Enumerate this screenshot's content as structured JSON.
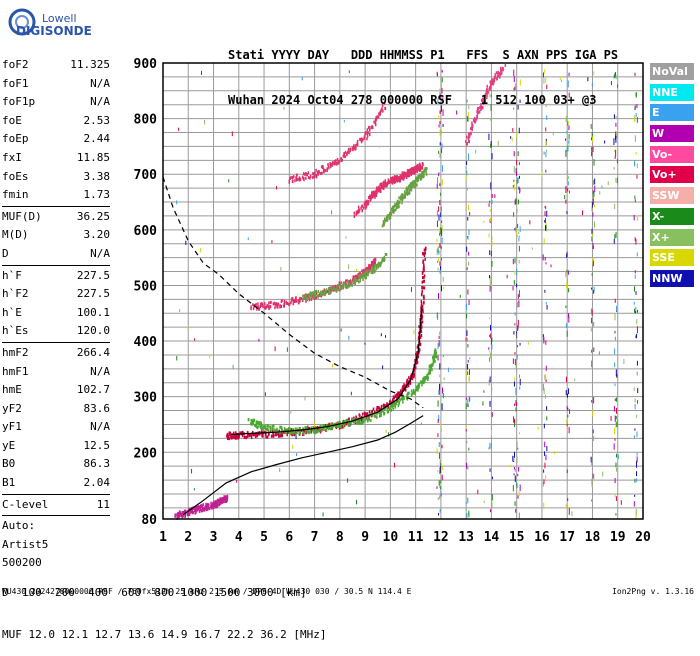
{
  "logo": {
    "line1": "Lowell",
    "line2": "DIGISONDE"
  },
  "header": {
    "labels": "Stati YYYY DAY   DDD HHMMSS P1   FFS  S AXN PPS IGA PS",
    "values": "Wuhan 2024 Oct04 278 000000 RSF    1 512 100 03+ @3"
  },
  "params": [
    {
      "name": "foF2",
      "value": "11.325"
    },
    {
      "name": "foF1",
      "value": "N/A"
    },
    {
      "name": "foF1p",
      "value": "N/A"
    },
    {
      "name": "foE",
      "value": "2.53"
    },
    {
      "name": "foEp",
      "value": "2.44"
    },
    {
      "name": "fxI",
      "value": "11.85"
    },
    {
      "name": "foEs",
      "value": "3.38"
    },
    {
      "name": "fmin",
      "value": "1.73"
    },
    {
      "divider": true
    },
    {
      "name": "MUF(D)",
      "value": "36.25"
    },
    {
      "name": "M(D)",
      "value": "3.20"
    },
    {
      "name": "D",
      "value": "N/A"
    },
    {
      "divider": true
    },
    {
      "name": "h`F",
      "value": "227.5"
    },
    {
      "name": "h`F2",
      "value": "227.5"
    },
    {
      "name": "h`E",
      "value": "100.1"
    },
    {
      "name": "h`Es",
      "value": "120.0"
    },
    {
      "divider": true
    },
    {
      "name": "hmF2",
      "value": "266.4"
    },
    {
      "name": "hmF1",
      "value": "N/A"
    },
    {
      "name": "hmE",
      "value": "102.7"
    },
    {
      "name": "yF2",
      "value": "83.6"
    },
    {
      "name": "yF1",
      "value": "N/A"
    },
    {
      "name": "yE",
      "value": "12.5"
    },
    {
      "name": "B0",
      "value": "86.3"
    },
    {
      "name": "B1",
      "value": "2.04"
    },
    {
      "divider": true
    },
    {
      "name": "C-level",
      "value": "11"
    },
    {
      "divider": true
    },
    {
      "name": "Auto:",
      "value": ""
    },
    {
      "name": "Artist5",
      "value": ""
    },
    {
      "name": "500200",
      "value": ""
    }
  ],
  "legend": [
    {
      "label": "NoVal",
      "color": "#a0a0a0"
    },
    {
      "label": "NNE",
      "color": "#00e8f0"
    },
    {
      "label": "E",
      "color": "#3aa0f0"
    },
    {
      "label": "W",
      "color": "#b000b0"
    },
    {
      "label": "Vo-",
      "color": "#ff4aa0"
    },
    {
      "label": "Vo+",
      "color": "#e0004a"
    },
    {
      "label": "SSW",
      "color": "#f4b0a8"
    },
    {
      "label": "X-",
      "color": "#1a8a1a"
    },
    {
      "label": "X+",
      "color": "#88c060"
    },
    {
      "label": "SSE",
      "color": "#d8d800"
    },
    {
      "label": "NNW",
      "color": "#1010b0"
    }
  ],
  "muf_table": {
    "d_label": "D",
    "distances": [
      "100",
      "200",
      "400",
      "600",
      "800",
      "1000",
      "1500",
      "3000"
    ],
    "d_unit": "[km]",
    "muf_label": "MUF",
    "mufs": [
      "12.0",
      "12.1",
      "12.7",
      "13.6",
      "14.9",
      "16.7",
      "22.2",
      "36.2"
    ],
    "muf_unit": "[MHz]"
  },
  "footer": {
    "info": "WU430_2024278000000.RSF / 760fx512h 25 kHz 2.5 km / DPS-4D WU430 030 / 30.5 N 114.4 E",
    "version": "Ion2Png v. 1.3.16"
  },
  "chart_data": {
    "type": "scatter",
    "x_ticks": [
      "1",
      "2",
      "3",
      "4",
      "5",
      "6",
      "7",
      "8",
      "9",
      "10",
      "11",
      "12",
      "13",
      "14",
      "15",
      "16",
      "17",
      "18",
      "19",
      "20"
    ],
    "y_ticks": [
      "80",
      "200",
      "300",
      "400",
      "500",
      "600",
      "700",
      "800",
      "900"
    ],
    "xlim": [
      1,
      20
    ],
    "ylim": [
      80,
      900
    ],
    "grid": true,
    "series": [
      {
        "role": "F2 O-trace",
        "color": "#c8003c",
        "x": [
          3.5,
          4.0,
          5.0,
          6.0,
          7.0,
          8.0,
          9.0,
          10.0,
          10.5,
          10.9,
          11.1,
          11.25,
          11.32
        ],
        "y": [
          232,
          233,
          235,
          238,
          242,
          252,
          268,
          290,
          315,
          345,
          390,
          470,
          580
        ]
      },
      {
        "role": "F2 X-trace",
        "color": "#4aa830",
        "x": [
          4.4,
          5.0,
          6.0,
          7.0,
          8.0,
          9.0,
          10.0,
          11.0,
          11.5,
          11.8
        ],
        "y": [
          258,
          247,
          240,
          243,
          252,
          262,
          282,
          315,
          345,
          385
        ]
      },
      {
        "role": "2nd hop O",
        "color": "#e0306a",
        "x": [
          4.5,
          5.5,
          6.5,
          7.5,
          8.5,
          9.0,
          9.4
        ],
        "y": [
          463,
          468,
          478,
          492,
          512,
          528,
          548
        ]
      },
      {
        "role": "2nd hop X",
        "color": "#66a040",
        "x": [
          6.5,
          7.5,
          8.5,
          9.3,
          9.8
        ],
        "y": [
          480,
          492,
          508,
          530,
          555
        ]
      },
      {
        "role": "3rd hop O",
        "color": "#e0306a",
        "x": [
          8.6,
          9.2,
          9.6,
          10.0,
          10.3,
          10.7,
          11.0,
          11.25
        ],
        "y": [
          630,
          660,
          680,
          690,
          695,
          705,
          712,
          718
        ]
      },
      {
        "role": "3rd hop X",
        "color": "#66a040",
        "x": [
          9.7,
          10.2,
          10.6,
          11.0,
          11.4
        ],
        "y": [
          615,
          645,
          670,
          690,
          710
        ]
      },
      {
        "role": "4th hop",
        "color": "#e0306a",
        "x": [
          6.0,
          7.0,
          8.0,
          9.0,
          9.8
        ],
        "y": [
          693,
          703,
          730,
          770,
          830
        ]
      },
      {
        "role": "Es trace",
        "color": "#c02090",
        "x": [
          1.5,
          2.0,
          2.5,
          3.0,
          3.3,
          3.5
        ],
        "y": [
          88,
          95,
          102,
          108,
          115,
          120
        ]
      },
      {
        "role": "5th hop",
        "color": "#e04080",
        "x": [
          13.0,
          13.5,
          14.0,
          14.5
        ],
        "y": [
          760,
          820,
          870,
          895
        ]
      }
    ],
    "lines": [
      {
        "role": "electron density profile",
        "style": "solid",
        "color": "#000000",
        "x": [
          1.8,
          2.5,
          3.5,
          4.5,
          5.5,
          6.5,
          7.5,
          8.5,
          9.5,
          10.2,
          10.8,
          11.3
        ],
        "y": [
          88,
          110,
          145,
          165,
          178,
          190,
          200,
          210,
          222,
          236,
          252,
          266
        ]
      },
      {
        "role": "virtual height model",
        "style": "dashed",
        "color": "#000000",
        "x": [
          1.0,
          1.4,
          2.0,
          2.6,
          3.2,
          4.0,
          5.0,
          6.0,
          7.0,
          8.0,
          9.0,
          10.0,
          10.8,
          11.3
        ],
        "y": [
          695,
          640,
          580,
          540,
          520,
          485,
          450,
          412,
          378,
          354,
          335,
          310,
          296,
          280
        ]
      },
      {
        "role": "O-trace fit",
        "style": "solid",
        "color": "#000000",
        "x": [
          3.7,
          4.5,
          5.5,
          6.5,
          7.5,
          8.5,
          9.5,
          10.3,
          10.8,
          11.1,
          11.25
        ],
        "y": [
          232,
          234,
          236,
          240,
          246,
          256,
          272,
          296,
          330,
          380,
          460
        ]
      }
    ]
  }
}
